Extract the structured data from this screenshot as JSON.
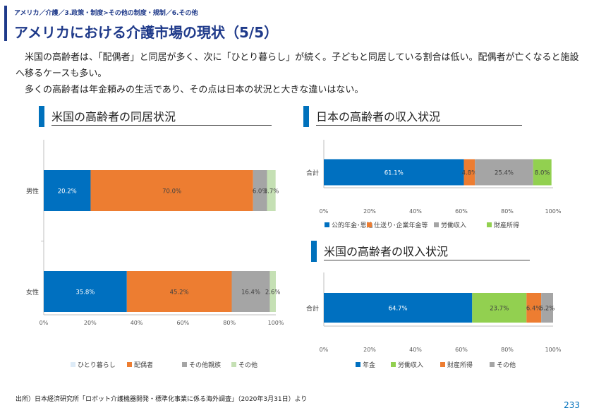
{
  "header": {
    "breadcrumb": "アメリカ／介護／3.政策・制度>その他の制度・規制／6.その他",
    "title": "アメリカにおける介護市場の現状（5/5）"
  },
  "intro": {
    "para1": "米国の高齢者は、「配偶者」と同居が多く、次に「ひとり暮らし」が続く。子どもと同居している割合は低い。配偶者が亡くなると施設へ移るケースも多い。",
    "para2": "多くの高齢者は年金頼みの生活であり、その点は日本の状況と大きな違いはない。"
  },
  "colors": {
    "blue": "#0070c0",
    "orange": "#ed7d31",
    "gray": "#a5a5a5",
    "green": "#92d050",
    "lightgreen": "#c5e0b4",
    "lightblue": "#ddebf7"
  },
  "sections": {
    "us_living": "米国の高齢者の同居状況",
    "jp_income": "日本の高齢者の収入状況",
    "us_income": "米国の高齢者の収入状況"
  },
  "chart_data": [
    {
      "type": "bar",
      "orientation": "horizontal-stacked-100",
      "categories": [
        "男性",
        "女性"
      ],
      "series": [
        {
          "name": "ひとり暮らし",
          "values": [
            20.2,
            35.8
          ],
          "color": "#0070c0"
        },
        {
          "name": "配偶者",
          "values": [
            70.0,
            45.2
          ],
          "color": "#ed7d31"
        },
        {
          "name": "その他親族",
          "values": [
            6.0,
            16.4
          ],
          "color": "#a5a5a5"
        },
        {
          "name": "その他",
          "values": [
            3.7,
            2.6
          ],
          "color": "#c5e0b4"
        }
      ],
      "legend_colors": [
        "#ddebf7",
        "#ed7d31",
        "#a5a5a5",
        "#c5e0b4"
      ],
      "value_labels": [
        [
          "20.2%",
          "70.0%",
          "6.0%",
          "3.7%"
        ],
        [
          "35.8%",
          "45.2%",
          "16.4%",
          "2.6%"
        ]
      ],
      "xticks": [
        "0%",
        "20%",
        "40%",
        "60%",
        "80%",
        "100%"
      ],
      "xlim": [
        0,
        100
      ],
      "legend": "bottom"
    },
    {
      "type": "bar",
      "orientation": "horizontal-stacked-100",
      "categories": [
        "合計"
      ],
      "series": [
        {
          "name": "公的年金･恩給",
          "values": [
            61.1
          ],
          "color": "#0070c0"
        },
        {
          "name": "仕送り･企業年金等",
          "values": [
            4.8
          ],
          "color": "#ed7d31"
        },
        {
          "name": "労働収入",
          "values": [
            25.4
          ],
          "color": "#a5a5a5"
        },
        {
          "name": "財産所得",
          "values": [
            8.0
          ],
          "color": "#92d050"
        }
      ],
      "value_labels": [
        [
          "61.1%",
          "4.8%",
          "25.4%",
          "8.0%"
        ]
      ],
      "xticks": [
        "0%",
        "20%",
        "40%",
        "60%",
        "80%",
        "100%"
      ],
      "xlim": [
        0,
        100
      ],
      "legend": "bottom"
    },
    {
      "type": "bar",
      "orientation": "horizontal-stacked-100",
      "categories": [
        "合計"
      ],
      "series": [
        {
          "name": "年金",
          "values": [
            64.7
          ],
          "color": "#0070c0"
        },
        {
          "name": "労働収入",
          "values": [
            23.7
          ],
          "color": "#92d050"
        },
        {
          "name": "財産所得",
          "values": [
            6.4
          ],
          "color": "#ed7d31"
        },
        {
          "name": "その他",
          "values": [
            5.2
          ],
          "color": "#a5a5a5"
        }
      ],
      "value_labels": [
        [
          "64.7%",
          "23.7%",
          "6.4%",
          "5.2%"
        ]
      ],
      "xticks": [
        "0%",
        "20%",
        "40%",
        "60%",
        "80%",
        "100%"
      ],
      "xlim": [
        0,
        100
      ],
      "legend": "bottom"
    }
  ],
  "footer": {
    "source": "出所）日本経済研究所「ロボット介護機器開発・標準化事業に係る海外調査」（2020年3月31日）より",
    "page_number": "233"
  }
}
